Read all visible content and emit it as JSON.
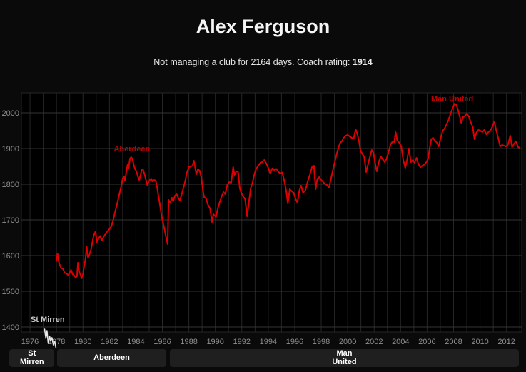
{
  "header": {
    "title": "Alex Ferguson",
    "subtitle_prefix": "Not managing a club for 2164 days. Coach rating: ",
    "subtitle_rating": "1914"
  },
  "colors": {
    "page_bg": "#0a0a0a",
    "plot_bg": "#000000",
    "grid_vertical": "#262626",
    "grid_horizontal": "#343434",
    "tick_label": "#8f8f8f",
    "line_red": "#dd0000",
    "line_white": "#e8e8e8",
    "annotation_red": "#c00000",
    "annotation_white": "#c8c8c8",
    "button_bg": "#1f1f1f",
    "button_text": "#ffffff"
  },
  "chart_data": {
    "type": "line",
    "title": "Alex Ferguson coach rating over time",
    "xlabel": "",
    "ylabel": "",
    "x_axis": {
      "min": 1975.35,
      "max": 2013.15,
      "tick_years": [
        1976,
        1978,
        1980,
        1982,
        1984,
        1986,
        1988,
        1990,
        1992,
        1994,
        1996,
        1998,
        2000,
        2002,
        2004,
        2006,
        2008,
        2010,
        2012
      ],
      "gridline_step": 1
    },
    "y_axis": {
      "min_value": 1386,
      "max_value": 2056,
      "ticks": [
        1400,
        1500,
        1600,
        1700,
        1800,
        1900,
        2000
      ]
    },
    "grid": true,
    "legend": "none",
    "series": [
      {
        "name": "St Mirren",
        "color": "#e8e8e8",
        "points": [
          [
            1977.1,
            1394
          ],
          [
            1977.2,
            1368
          ],
          [
            1977.28,
            1390
          ],
          [
            1977.38,
            1354
          ],
          [
            1977.48,
            1374
          ],
          [
            1977.56,
            1362
          ],
          [
            1977.66,
            1370
          ],
          [
            1977.76,
            1350
          ],
          [
            1977.86,
            1360
          ],
          [
            1977.96,
            1342
          ]
        ]
      },
      {
        "name": "Aberdeen / Man United",
        "color": "#dd0000",
        "points": [
          [
            1978.0,
            1585
          ],
          [
            1978.08,
            1606
          ],
          [
            1978.2,
            1578
          ],
          [
            1978.35,
            1565
          ],
          [
            1978.5,
            1562
          ],
          [
            1978.62,
            1552
          ],
          [
            1978.75,
            1550
          ],
          [
            1978.9,
            1545
          ],
          [
            1979.0,
            1553
          ],
          [
            1979.1,
            1560
          ],
          [
            1979.22,
            1548
          ],
          [
            1979.35,
            1544
          ],
          [
            1979.45,
            1538
          ],
          [
            1979.55,
            1542
          ],
          [
            1979.62,
            1580
          ],
          [
            1979.7,
            1556
          ],
          [
            1979.8,
            1548
          ],
          [
            1979.9,
            1536
          ],
          [
            1980.0,
            1548
          ],
          [
            1980.1,
            1572
          ],
          [
            1980.2,
            1592
          ],
          [
            1980.28,
            1626
          ],
          [
            1980.38,
            1594
          ],
          [
            1980.5,
            1604
          ],
          [
            1980.62,
            1618
          ],
          [
            1980.75,
            1645
          ],
          [
            1980.85,
            1660
          ],
          [
            1980.95,
            1668
          ],
          [
            1981.05,
            1638
          ],
          [
            1981.18,
            1648
          ],
          [
            1981.3,
            1655
          ],
          [
            1981.42,
            1642
          ],
          [
            1981.55,
            1652
          ],
          [
            1981.7,
            1660
          ],
          [
            1981.85,
            1668
          ],
          [
            1982.0,
            1674
          ],
          [
            1982.15,
            1682
          ],
          [
            1982.3,
            1702
          ],
          [
            1982.45,
            1726
          ],
          [
            1982.6,
            1748
          ],
          [
            1982.75,
            1772
          ],
          [
            1982.88,
            1792
          ],
          [
            1983.0,
            1816
          ],
          [
            1983.1,
            1822
          ],
          [
            1983.18,
            1810
          ],
          [
            1983.28,
            1836
          ],
          [
            1983.38,
            1856
          ],
          [
            1983.45,
            1846
          ],
          [
            1983.55,
            1872
          ],
          [
            1983.65,
            1876
          ],
          [
            1983.75,
            1870
          ],
          [
            1983.85,
            1852
          ],
          [
            1983.95,
            1842
          ],
          [
            1984.05,
            1835
          ],
          [
            1984.15,
            1822
          ],
          [
            1984.25,
            1812
          ],
          [
            1984.35,
            1826
          ],
          [
            1984.45,
            1842
          ],
          [
            1984.55,
            1840
          ],
          [
            1984.65,
            1828
          ],
          [
            1984.75,
            1814
          ],
          [
            1984.85,
            1798
          ],
          [
            1984.95,
            1806
          ],
          [
            1985.05,
            1812
          ],
          [
            1985.15,
            1816
          ],
          [
            1985.25,
            1808
          ],
          [
            1985.38,
            1812
          ],
          [
            1985.5,
            1810
          ],
          [
            1985.6,
            1792
          ],
          [
            1985.7,
            1768
          ],
          [
            1985.8,
            1746
          ],
          [
            1985.9,
            1722
          ],
          [
            1986.0,
            1700
          ],
          [
            1986.1,
            1684
          ],
          [
            1986.2,
            1666
          ],
          [
            1986.3,
            1648
          ],
          [
            1986.4,
            1632
          ],
          [
            1986.47,
            1756
          ],
          [
            1986.6,
            1748
          ],
          [
            1986.72,
            1762
          ],
          [
            1986.82,
            1752
          ],
          [
            1986.95,
            1768
          ],
          [
            1987.08,
            1772
          ],
          [
            1987.2,
            1762
          ],
          [
            1987.32,
            1754
          ],
          [
            1987.45,
            1770
          ],
          [
            1987.58,
            1788
          ],
          [
            1987.72,
            1808
          ],
          [
            1987.85,
            1832
          ],
          [
            1988.0,
            1848
          ],
          [
            1988.15,
            1850
          ],
          [
            1988.28,
            1852
          ],
          [
            1988.38,
            1866
          ],
          [
            1988.48,
            1846
          ],
          [
            1988.56,
            1828
          ],
          [
            1988.68,
            1842
          ],
          [
            1988.82,
            1838
          ],
          [
            1988.95,
            1818
          ],
          [
            1989.05,
            1786
          ],
          [
            1989.15,
            1764
          ],
          [
            1989.3,
            1760
          ],
          [
            1989.45,
            1742
          ],
          [
            1989.6,
            1732
          ],
          [
            1989.75,
            1694
          ],
          [
            1989.85,
            1716
          ],
          [
            1989.95,
            1712
          ],
          [
            1990.05,
            1708
          ],
          [
            1990.2,
            1734
          ],
          [
            1990.35,
            1752
          ],
          [
            1990.5,
            1768
          ],
          [
            1990.62,
            1778
          ],
          [
            1990.75,
            1772
          ],
          [
            1990.9,
            1798
          ],
          [
            1991.05,
            1806
          ],
          [
            1991.2,
            1804
          ],
          [
            1991.35,
            1848
          ],
          [
            1991.45,
            1826
          ],
          [
            1991.58,
            1836
          ],
          [
            1991.72,
            1834
          ],
          [
            1991.85,
            1788
          ],
          [
            1991.98,
            1774
          ],
          [
            1992.1,
            1766
          ],
          [
            1992.25,
            1758
          ],
          [
            1992.4,
            1710
          ],
          [
            1992.55,
            1754
          ],
          [
            1992.68,
            1790
          ],
          [
            1992.82,
            1806
          ],
          [
            1992.95,
            1828
          ],
          [
            1993.1,
            1844
          ],
          [
            1993.25,
            1852
          ],
          [
            1993.4,
            1860
          ],
          [
            1993.55,
            1862
          ],
          [
            1993.7,
            1868
          ],
          [
            1993.85,
            1858
          ],
          [
            1994.0,
            1846
          ],
          [
            1994.15,
            1830
          ],
          [
            1994.3,
            1844
          ],
          [
            1994.45,
            1840
          ],
          [
            1994.6,
            1843
          ],
          [
            1994.75,
            1836
          ],
          [
            1994.9,
            1830
          ],
          [
            1995.05,
            1833
          ],
          [
            1995.2,
            1812
          ],
          [
            1995.35,
            1782
          ],
          [
            1995.48,
            1746
          ],
          [
            1995.62,
            1786
          ],
          [
            1995.78,
            1780
          ],
          [
            1995.92,
            1776
          ],
          [
            1996.05,
            1760
          ],
          [
            1996.2,
            1748
          ],
          [
            1996.35,
            1782
          ],
          [
            1996.48,
            1796
          ],
          [
            1996.62,
            1776
          ],
          [
            1996.8,
            1782
          ],
          [
            1996.98,
            1808
          ],
          [
            1997.15,
            1828
          ],
          [
            1997.32,
            1850
          ],
          [
            1997.45,
            1852
          ],
          [
            1997.58,
            1786
          ],
          [
            1997.7,
            1815
          ],
          [
            1997.85,
            1820
          ],
          [
            1998.0,
            1812
          ],
          [
            1998.15,
            1806
          ],
          [
            1998.3,
            1800
          ],
          [
            1998.45,
            1798
          ],
          [
            1998.58,
            1790
          ],
          [
            1998.72,
            1812
          ],
          [
            1998.88,
            1840
          ],
          [
            1999.02,
            1862
          ],
          [
            1999.15,
            1882
          ],
          [
            1999.28,
            1900
          ],
          [
            1999.42,
            1915
          ],
          [
            1999.55,
            1920
          ],
          [
            1999.7,
            1930
          ],
          [
            1999.85,
            1936
          ],
          [
            2000.0,
            1938
          ],
          [
            2000.15,
            1934
          ],
          [
            2000.3,
            1930
          ],
          [
            2000.45,
            1928
          ],
          [
            2000.6,
            1954
          ],
          [
            2000.72,
            1942
          ],
          [
            2000.85,
            1922
          ],
          [
            2000.98,
            1892
          ],
          [
            2001.1,
            1886
          ],
          [
            2001.25,
            1876
          ],
          [
            2001.4,
            1834
          ],
          [
            2001.55,
            1858
          ],
          [
            2001.7,
            1880
          ],
          [
            2001.82,
            1896
          ],
          [
            2001.95,
            1888
          ],
          [
            2002.08,
            1858
          ],
          [
            2002.2,
            1836
          ],
          [
            2002.35,
            1862
          ],
          [
            2002.5,
            1878
          ],
          [
            2002.65,
            1870
          ],
          [
            2002.8,
            1862
          ],
          [
            2002.95,
            1872
          ],
          [
            2003.1,
            1892
          ],
          [
            2003.25,
            1912
          ],
          [
            2003.4,
            1920
          ],
          [
            2003.52,
            1918
          ],
          [
            2003.62,
            1946
          ],
          [
            2003.75,
            1922
          ],
          [
            2003.9,
            1916
          ],
          [
            2004.05,
            1906
          ],
          [
            2004.2,
            1868
          ],
          [
            2004.35,
            1846
          ],
          [
            2004.5,
            1870
          ],
          [
            2004.62,
            1900
          ],
          [
            2004.78,
            1862
          ],
          [
            2004.92,
            1868
          ],
          [
            2005.05,
            1860
          ],
          [
            2005.2,
            1874
          ],
          [
            2005.35,
            1856
          ],
          [
            2005.5,
            1848
          ],
          [
            2005.65,
            1852
          ],
          [
            2005.8,
            1856
          ],
          [
            2005.95,
            1862
          ],
          [
            2006.08,
            1872
          ],
          [
            2006.2,
            1902
          ],
          [
            2006.32,
            1926
          ],
          [
            2006.45,
            1930
          ],
          [
            2006.6,
            1922
          ],
          [
            2006.75,
            1916
          ],
          [
            2006.88,
            1906
          ],
          [
            2007.02,
            1928
          ],
          [
            2007.18,
            1950
          ],
          [
            2007.32,
            1956
          ],
          [
            2007.48,
            1968
          ],
          [
            2007.62,
            1980
          ],
          [
            2007.78,
            1998
          ],
          [
            2007.92,
            2012
          ],
          [
            2008.08,
            2026
          ],
          [
            2008.22,
            2022
          ],
          [
            2008.35,
            2006
          ],
          [
            2008.48,
            1988
          ],
          [
            2008.58,
            1972
          ],
          [
            2008.72,
            1988
          ],
          [
            2008.88,
            1992
          ],
          [
            2009.0,
            1998
          ],
          [
            2009.15,
            1990
          ],
          [
            2009.3,
            1974
          ],
          [
            2009.45,
            1960
          ],
          [
            2009.58,
            1926
          ],
          [
            2009.72,
            1944
          ],
          [
            2009.88,
            1952
          ],
          [
            2010.02,
            1950
          ],
          [
            2010.18,
            1946
          ],
          [
            2010.32,
            1952
          ],
          [
            2010.48,
            1940
          ],
          [
            2010.62,
            1946
          ],
          [
            2010.78,
            1950
          ],
          [
            2010.92,
            1960
          ],
          [
            2011.08,
            1976
          ],
          [
            2011.22,
            1952
          ],
          [
            2011.38,
            1928
          ],
          [
            2011.52,
            1906
          ],
          [
            2011.68,
            1910
          ],
          [
            2011.82,
            1908
          ],
          [
            2011.98,
            1906
          ],
          [
            2012.12,
            1912
          ],
          [
            2012.28,
            1936
          ],
          [
            2012.42,
            1904
          ],
          [
            2012.58,
            1914
          ],
          [
            2012.72,
            1920
          ],
          [
            2012.88,
            1904
          ],
          [
            2013.0,
            1902
          ]
        ]
      }
    ],
    "annotations": [
      {
        "text": "St Mirren",
        "x": 1976.05,
        "y": 1414,
        "anchor": "start",
        "color": "#c8c8c8"
      },
      {
        "text": "Aberdeen",
        "x": 1983.7,
        "y": 1892,
        "anchor": "middle",
        "color": "#c00000"
      },
      {
        "text": "Man United",
        "x": 2007.9,
        "y": 2032,
        "anchor": "middle",
        "color": "#c00000"
      }
    ]
  },
  "timeline": {
    "segments": [
      {
        "label": "St Mirren",
        "lines": [
          "St",
          "Mirren"
        ],
        "start_year": 1974.4,
        "end_year": 1977.95
      },
      {
        "label": "Aberdeen",
        "lines": [
          "Aberdeen"
        ],
        "start_year": 1978.0,
        "end_year": 1986.4
      },
      {
        "label": "Man United",
        "lines": [
          "Man",
          "United"
        ],
        "start_year": 1986.5,
        "end_year": 2013.05
      }
    ]
  }
}
